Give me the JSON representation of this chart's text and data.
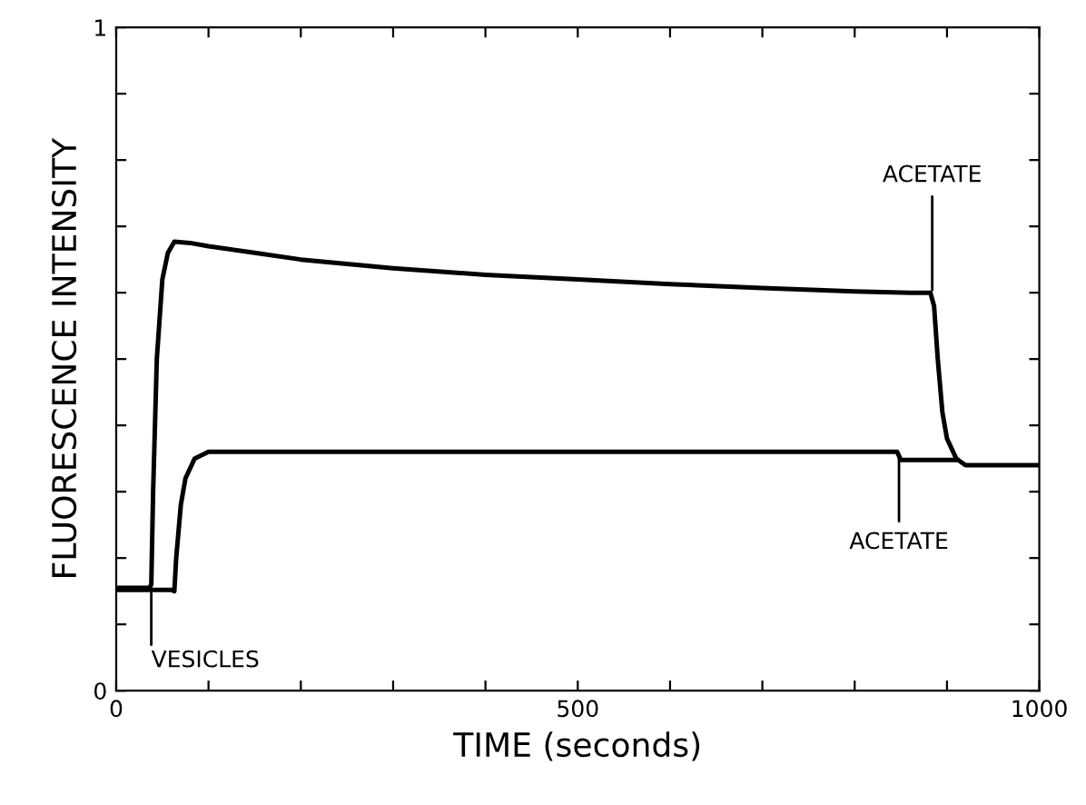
{
  "chart_data": {
    "type": "line",
    "xlabel": "TIME (seconds)",
    "ylabel": "FLUORESCENCE INTENSITY",
    "xlim": [
      0,
      1000
    ],
    "ylim": [
      0,
      1
    ],
    "xticks": [
      0,
      {
        "value": 100,
        "label": null
      },
      {
        "value": 200,
        "label": null
      },
      {
        "value": 300,
        "label": null
      },
      {
        "value": 400,
        "label": null
      },
      500,
      {
        "value": 600,
        "label": null
      },
      {
        "value": 700,
        "label": null
      },
      {
        "value": 800,
        "label": null
      },
      {
        "value": 900,
        "label": null
      },
      1000
    ],
    "yticks": [
      0,
      {
        "value": 0.1,
        "label": null
      },
      {
        "value": 0.2,
        "label": null
      },
      {
        "value": 0.3,
        "label": null
      },
      {
        "value": 0.4,
        "label": null
      },
      {
        "value": 0.5,
        "label": null
      },
      {
        "value": 0.6,
        "label": null
      },
      {
        "value": 0.7,
        "label": null
      },
      {
        "value": 0.8,
        "label": null
      },
      {
        "value": 0.9,
        "label": null
      },
      1
    ],
    "grid": false,
    "legend": false,
    "marker": "none",
    "line_style": "solid",
    "series": [
      {
        "color": "#000000",
        "x": [
          0,
          36,
          38,
          40,
          44,
          50,
          56,
          63,
          80,
          100,
          150,
          200,
          300,
          400,
          500,
          600,
          700,
          800,
          860,
          882,
          886,
          890,
          895,
          900,
          910,
          920,
          950,
          1000
        ],
        "values": [
          0.155,
          0.155,
          0.16,
          0.3,
          0.5,
          0.62,
          0.66,
          0.677,
          0.675,
          0.67,
          0.66,
          0.65,
          0.637,
          0.627,
          0.62,
          0.613,
          0.607,
          0.602,
          0.6,
          0.6,
          0.58,
          0.5,
          0.42,
          0.38,
          0.35,
          0.34,
          0.34,
          0.34
        ]
      },
      {
        "color": "#000000",
        "x": [
          0,
          60,
          63,
          65,
          70,
          75,
          85,
          100,
          150,
          300,
          500,
          700,
          846,
          850,
          911
        ],
        "values": [
          0.152,
          0.152,
          0.15,
          0.2,
          0.28,
          0.32,
          0.35,
          0.36,
          0.36,
          0.36,
          0.36,
          0.36,
          0.36,
          0.348,
          0.348
        ]
      }
    ],
    "annotations": [
      {
        "text": "VESICLES",
        "x": 38,
        "y": 0.155
      },
      {
        "text": "ACETATE",
        "x": 884,
        "y": 0.6
      },
      {
        "text": "ACETATE",
        "x": 848,
        "y": 0.36
      }
    ]
  }
}
